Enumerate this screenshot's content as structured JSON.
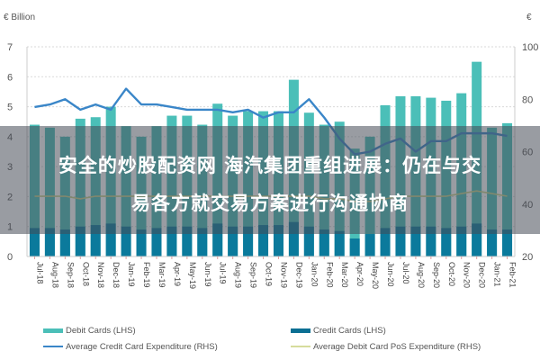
{
  "chart_data": {
    "type": "bar",
    "title": "",
    "left_axis_unit": "€ Billion",
    "right_axis_unit": "€",
    "xlabel": "",
    "ylabel": "€ Billion",
    "ylim": [
      0,
      7
    ],
    "y2lim": [
      20,
      100
    ],
    "yticks": [
      0,
      1,
      2,
      3,
      4,
      5,
      6,
      7
    ],
    "y2ticks": [
      20,
      40,
      60,
      80,
      100
    ],
    "grid": true,
    "legend_position": "bottom",
    "categories": [
      "Jul-18",
      "Aug-18",
      "Sep-18",
      "Oct-18",
      "Nov-18",
      "Dec-18",
      "Jan-19",
      "Feb-19",
      "Mar-19",
      "Apr-19",
      "May-19",
      "Jun-19",
      "Jul-19",
      "Aug-19",
      "Sep-19",
      "Oct-19",
      "Nov-19",
      "Dec-19",
      "Jan-20",
      "Feb-20",
      "Mar-20",
      "Apr-20",
      "May-20",
      "Jun-20",
      "Jul-20",
      "Aug-20",
      "Sep-20",
      "Oct-20",
      "Nov-20",
      "Dec-20",
      "Jan-21",
      "Feb-21"
    ],
    "series": [
      {
        "name": "Debit Cards (LHS)",
        "type": "bar",
        "axis": "left",
        "color": "#4bbfb8",
        "values": [
          4.4,
          4.3,
          4.0,
          4.6,
          4.65,
          5.0,
          4.35,
          4.0,
          4.35,
          4.7,
          4.7,
          4.4,
          5.1,
          4.7,
          4.85,
          4.85,
          4.85,
          5.9,
          4.8,
          4.4,
          4.5,
          3.6,
          4.0,
          5.05,
          5.35,
          5.35,
          5.3,
          5.2,
          5.45,
          6.5,
          4.3,
          4.45
        ]
      },
      {
        "name": "Credit Cards (LHS)",
        "type": "bar",
        "axis": "left",
        "color": "#0b7a9c",
        "values": [
          0.95,
          0.95,
          0.9,
          1.0,
          1.05,
          1.1,
          1.0,
          0.9,
          0.95,
          1.0,
          1.0,
          0.95,
          1.1,
          1.0,
          1.0,
          1.05,
          1.05,
          1.15,
          1.0,
          0.9,
          0.85,
          0.6,
          0.75,
          0.95,
          1.0,
          1.0,
          1.0,
          0.95,
          1.0,
          1.1,
          0.9,
          0.9
        ]
      },
      {
        "name": "Average Credit Card Expenditure (RHS)",
        "type": "line",
        "axis": "right",
        "color": "#3a86c8",
        "values": [
          77,
          78,
          80,
          76,
          78,
          76,
          84,
          78,
          78,
          77,
          76,
          76,
          76,
          75,
          76,
          73,
          75,
          75,
          80,
          73,
          65,
          59,
          60,
          63,
          65,
          60,
          64,
          64,
          67,
          67,
          67,
          66
        ]
      },
      {
        "name": "Average Debit Card PoS Expenditure (RHS)",
        "type": "line",
        "axis": "right",
        "color": "#c9d28a",
        "values": [
          43,
          43,
          43,
          42,
          43,
          43,
          43,
          43,
          43,
          43,
          43,
          43,
          43,
          43,
          43,
          43,
          43,
          43,
          43,
          42,
          42,
          41,
          41,
          42,
          43,
          43,
          43,
          43,
          44,
          45,
          44,
          43
        ]
      }
    ]
  },
  "axes": {
    "left_unit_label": "€ Billion",
    "right_unit_label": "€",
    "left_ticks": [
      "0",
      "1",
      "2",
      "3",
      "4",
      "5",
      "6",
      "7"
    ],
    "right_ticks": [
      "20",
      "40",
      "60",
      "80",
      "100"
    ]
  },
  "legend": {
    "debit_cards": "Debit Cards (LHS)",
    "credit_cards": "Credit Cards (LHS)",
    "avg_credit": "Average Credit Card Expenditure (RHS)",
    "avg_debit_pos": "Average Debit Card PoS Expenditure (RHS)"
  },
  "overlay": {
    "line1": "安全的炒股配资网 海汽集团重组进展：仍在与交",
    "line2": "易各方就交易方案进行沟通协商"
  },
  "colors": {
    "debit": "#4bbfb8",
    "credit": "#0b7a9c",
    "avg_credit_line": "#3a86c8",
    "avg_debit_line": "#c9d28a",
    "grid": "#d9d9d9"
  }
}
